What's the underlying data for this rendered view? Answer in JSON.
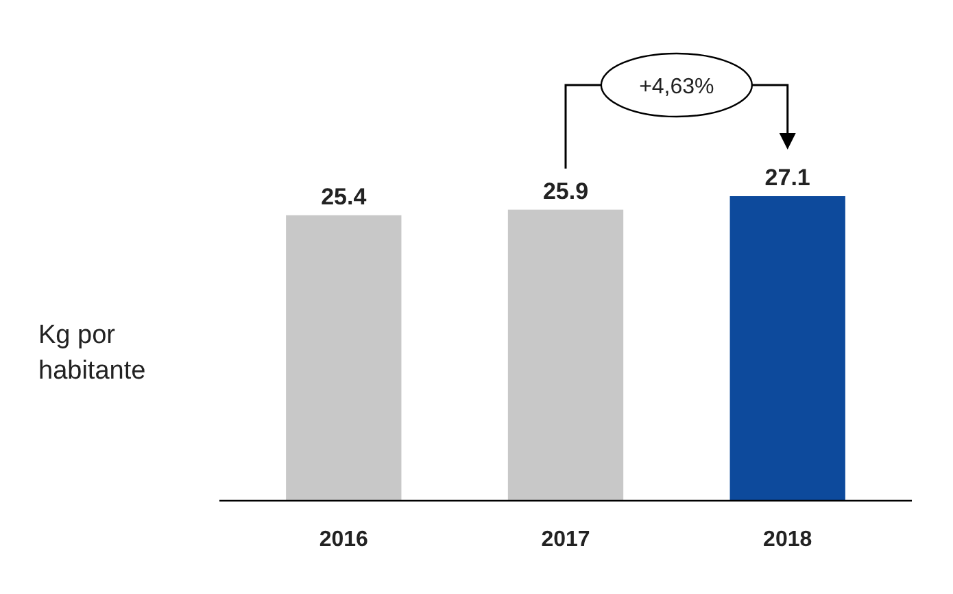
{
  "chart_data": {
    "type": "bar",
    "ylabel": "Kg por habitante",
    "categories": [
      "2016",
      "2017",
      "2018"
    ],
    "values": [
      25.4,
      25.9,
      27.1
    ],
    "colors": [
      "#c8c8c8",
      "#c8c8c8",
      "#0d4a9c"
    ],
    "data_labels": true,
    "annotations": [
      "+4,63%"
    ]
  }
}
